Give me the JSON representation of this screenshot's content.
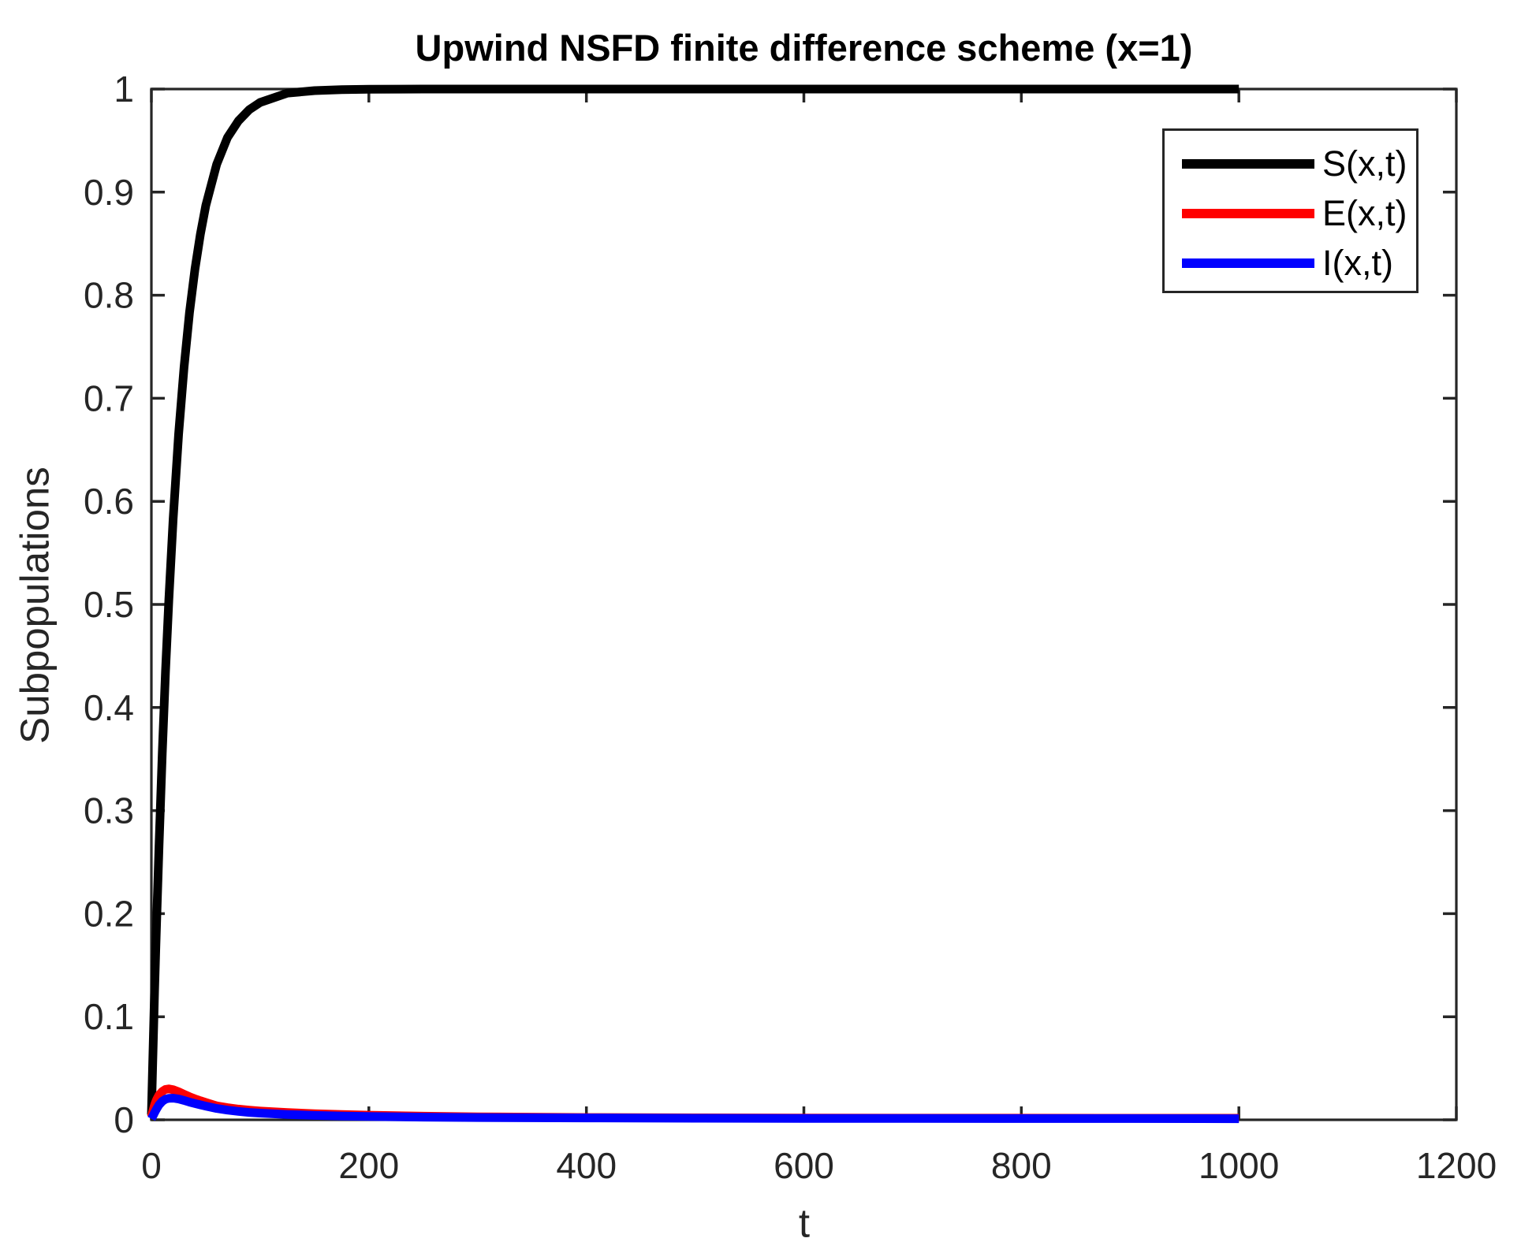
{
  "chart_data": {
    "type": "line",
    "title": "Upwind NSFD finite difference scheme (x=1)",
    "xlabel": "t",
    "ylabel": "Subpopulations",
    "xlim": [
      0,
      1200
    ],
    "ylim": [
      0,
      1
    ],
    "xticks": [
      0,
      200,
      400,
      600,
      800,
      1000,
      1200
    ],
    "xtick_labels": [
      "0",
      "200",
      "400",
      "600",
      "800",
      "1000",
      "1200"
    ],
    "yticks": [
      0,
      0.1,
      0.2,
      0.3,
      0.4,
      0.5,
      0.6,
      0.7,
      0.8,
      0.9,
      1
    ],
    "ytick_labels": [
      "0",
      "0.1",
      "0.2",
      "0.3",
      "0.4",
      "0.5",
      "0.6",
      "0.7",
      "0.8",
      "0.9",
      "1"
    ],
    "grid": false,
    "legend_position": "northeast",
    "axis_color": "#262626",
    "background_color": "#ffffff",
    "x": [
      0,
      1,
      2,
      3,
      4,
      5,
      7,
      10,
      13,
      16,
      20,
      25,
      30,
      35,
      40,
      45,
      50,
      60,
      70,
      80,
      90,
      100,
      125,
      150,
      175,
      200,
      250,
      300,
      400,
      500,
      600,
      700,
      800,
      900,
      1000
    ],
    "series": [
      {
        "name": "S(x,t)",
        "color": "#000000",
        "values": [
          0.005,
          0.047,
          0.088,
          0.127,
          0.164,
          0.199,
          0.266,
          0.356,
          0.435,
          0.504,
          0.583,
          0.665,
          0.73,
          0.783,
          0.825,
          0.859,
          0.887,
          0.927,
          0.953,
          0.969,
          0.98,
          0.987,
          0.996,
          0.9985,
          0.9995,
          0.9998,
          1,
          1,
          1,
          1,
          1,
          1,
          1,
          1,
          1
        ]
      },
      {
        "name": "E(x,t)",
        "color": "#ff0000",
        "values": [
          0.003,
          0.007,
          0.011,
          0.0145,
          0.0175,
          0.02,
          0.024,
          0.0275,
          0.0295,
          0.03,
          0.0292,
          0.0272,
          0.0248,
          0.0224,
          0.0203,
          0.0185,
          0.0168,
          0.0135,
          0.0118,
          0.0104,
          0.0094,
          0.0086,
          0.007,
          0.0059,
          0.0051,
          0.0045,
          0.0035,
          0.0029,
          0.0022,
          0.0019,
          0.0017,
          0.0016,
          0.0016,
          0.0015,
          0.0015
        ]
      },
      {
        "name": "I(x,t)",
        "color": "#0000ff",
        "values": [
          0.001,
          0.003,
          0.005,
          0.007,
          0.009,
          0.011,
          0.0145,
          0.018,
          0.02,
          0.0209,
          0.021,
          0.0202,
          0.0188,
          0.0172,
          0.0158,
          0.0145,
          0.0133,
          0.011,
          0.0094,
          0.0082,
          0.0072,
          0.0065,
          0.0052,
          0.0043,
          0.0037,
          0.0032,
          0.0026,
          0.0022,
          0.0018,
          0.0015,
          0.0014,
          0.0013,
          0.0012,
          0.0012,
          0.0011
        ]
      }
    ]
  }
}
